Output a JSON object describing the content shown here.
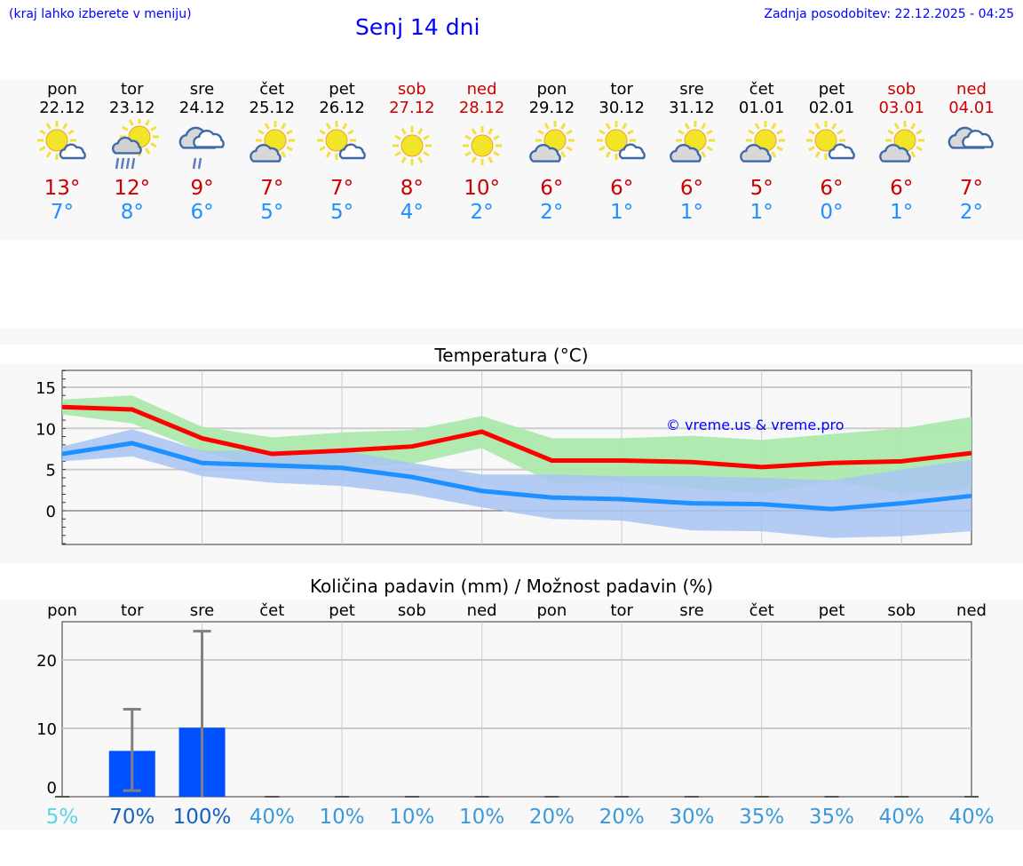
{
  "header": {
    "hint": "(kraj lahko izberete v meniju)",
    "title": "Senj 14 dni",
    "updated": "Zadnja posodobitev: 22.12.2025 - 04:25"
  },
  "days": [
    {
      "day": "pon",
      "date": "22.12",
      "weekend": false,
      "icon": "sun-small-cloud-icon",
      "max": "13°",
      "min": "7°"
    },
    {
      "day": "tor",
      "date": "23.12",
      "weekend": false,
      "icon": "sun-cloud-rain-icon",
      "max": "12°",
      "min": "8°"
    },
    {
      "day": "sre",
      "date": "24.12",
      "weekend": false,
      "icon": "cloudy-rain-icon",
      "max": "9°",
      "min": "6°"
    },
    {
      "day": "čet",
      "date": "25.12",
      "weekend": false,
      "icon": "cloud-sun-icon",
      "max": "7°",
      "min": "5°"
    },
    {
      "day": "pet",
      "date": "26.12",
      "weekend": false,
      "icon": "sun-small-cloud-icon",
      "max": "7°",
      "min": "5°"
    },
    {
      "day": "sob",
      "date": "27.12",
      "weekend": true,
      "icon": "sun-icon",
      "max": "8°",
      "min": "4°"
    },
    {
      "day": "ned",
      "date": "28.12",
      "weekend": true,
      "icon": "sun-icon",
      "max": "10°",
      "min": "2°"
    },
    {
      "day": "pon",
      "date": "29.12",
      "weekend": false,
      "icon": "cloud-sun-icon",
      "max": "6°",
      "min": "2°"
    },
    {
      "day": "tor",
      "date": "30.12",
      "weekend": false,
      "icon": "sun-small-cloud-icon",
      "max": "6°",
      "min": "1°"
    },
    {
      "day": "sre",
      "date": "31.12",
      "weekend": false,
      "icon": "cloud-sun-icon",
      "max": "6°",
      "min": "1°"
    },
    {
      "day": "čet",
      "date": "01.01",
      "weekend": false,
      "icon": "cloud-sun-icon",
      "max": "5°",
      "min": "1°"
    },
    {
      "day": "pet",
      "date": "02.01",
      "weekend": false,
      "icon": "sun-small-cloud-icon",
      "max": "6°",
      "min": "0°"
    },
    {
      "day": "sob",
      "date": "03.01",
      "weekend": true,
      "icon": "cloud-sun-icon",
      "max": "6°",
      "min": "1°"
    },
    {
      "day": "ned",
      "date": "04.01",
      "weekend": true,
      "icon": "cloudy-icon",
      "max": "7°",
      "min": "2°"
    }
  ],
  "chart_data": [
    {
      "type": "line",
      "title": "Temperatura (°C)",
      "ylim": [
        -4,
        17
      ],
      "yticks": [
        "15",
        "10",
        "5",
        "0"
      ],
      "ytick_values": [
        15,
        10,
        5,
        0
      ],
      "watermark": "© vreme.us & vreme.pro",
      "series": [
        {
          "name": "max",
          "color": "#ff0000",
          "values": [
            12.6,
            12.3,
            8.8,
            6.9,
            7.3,
            7.8,
            9.6,
            6.1,
            6.1,
            5.9,
            5.3,
            5.8,
            6.0,
            7.0
          ],
          "band_upper": [
            13.5,
            14.0,
            10.2,
            8.9,
            9.5,
            9.8,
            11.5,
            8.8,
            8.8,
            9.1,
            8.6,
            9.3,
            10.0,
            11.4
          ],
          "band_lower": [
            11.7,
            10.6,
            7.2,
            4.8,
            5.2,
            5.7,
            7.6,
            3.4,
            3.5,
            2.7,
            2.1,
            3.6,
            2.1,
            2.7
          ],
          "band_color": "#ace9ac"
        },
        {
          "name": "min",
          "color": "#1e90ff",
          "values": [
            6.9,
            8.2,
            5.8,
            5.5,
            5.2,
            4.1,
            2.4,
            1.6,
            1.4,
            0.9,
            0.8,
            0.2,
            0.9,
            1.8
          ],
          "band_upper": [
            7.8,
            9.9,
            7.3,
            7.3,
            7.3,
            5.8,
            4.4,
            4.4,
            4.2,
            4.2,
            4.0,
            3.7,
            5.0,
            6.2
          ],
          "band_lower": [
            6.0,
            6.6,
            4.2,
            3.4,
            3.0,
            2.0,
            0.4,
            -1.0,
            -1.2,
            -2.4,
            -2.5,
            -3.3,
            -3.1,
            -2.5
          ],
          "band_color": "#a8c4f2"
        }
      ]
    },
    {
      "type": "bar",
      "title": "Količina padavin (mm) / Možnost padavin (%)",
      "ylim": [
        0,
        25.6
      ],
      "yticks": [
        "20",
        "10",
        "0"
      ],
      "ytick_values": [
        20,
        10,
        0
      ],
      "categories": [
        "pon",
        "tor",
        "sre",
        "čet",
        "pet",
        "sob",
        "ned",
        "pon",
        "tor",
        "sre",
        "čet",
        "pet",
        "sob",
        "ned"
      ],
      "values": [
        0,
        6.7,
        10.1,
        0,
        0,
        0,
        0,
        0,
        0,
        0,
        0,
        0,
        0,
        0
      ],
      "err_high": [
        0,
        12.8,
        24.2,
        0,
        0,
        0,
        0,
        0,
        0,
        0,
        0,
        0,
        0,
        0
      ],
      "err_low": [
        0,
        0.9,
        0,
        0,
        0,
        0,
        0,
        0,
        0,
        0,
        0,
        0,
        0,
        0
      ],
      "probability": [
        "5%",
        "70%",
        "100%",
        "40%",
        "10%",
        "10%",
        "10%",
        "20%",
        "20%",
        "30%",
        "35%",
        "35%",
        "40%",
        "40%"
      ],
      "probability_colors": [
        "#5ad6e2",
        "#1763b8",
        "#1560bd",
        "#3a9ad9",
        "#3a9ad9",
        "#3a9ad9",
        "#3a9ad9",
        "#3a9ad9",
        "#3a9ad9",
        "#3a9ad9",
        "#3a9ad9",
        "#3a9ad9",
        "#3a9ad9",
        "#3a9ad9"
      ],
      "bar_color": "#0050ff"
    }
  ]
}
